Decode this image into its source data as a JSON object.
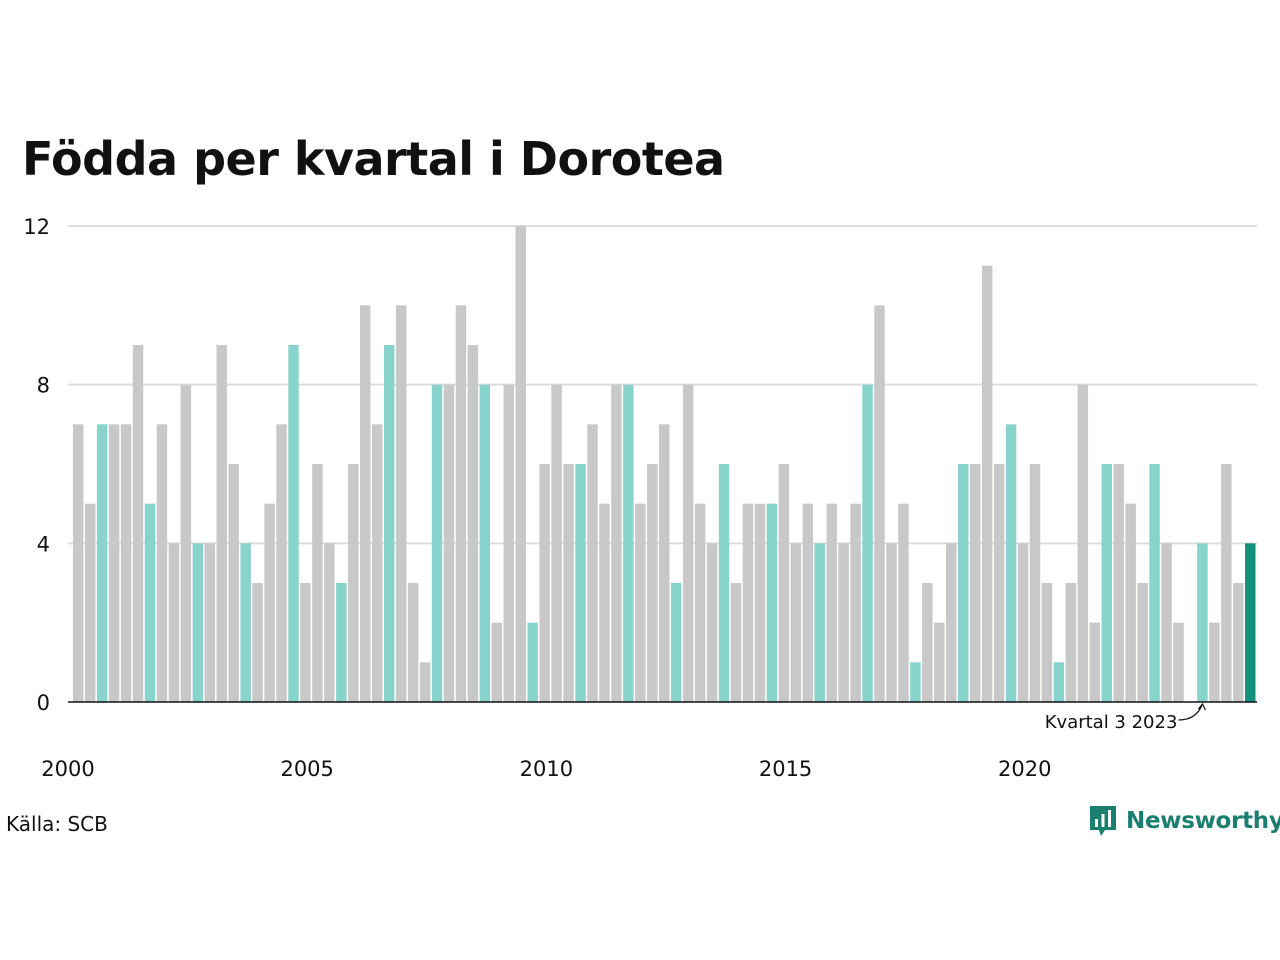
{
  "title": "Födda per kvartal i Dorotea",
  "source": "Källa: SCB",
  "brand": "Newsworthy",
  "colors": {
    "grey": "#c8c8c8",
    "q3": "#88d4cc",
    "latest": "#138f7e",
    "grid": "#dddddd",
    "brand": "#1a7f6e"
  },
  "annotation": "Kvartal 3 2023",
  "chart_data": {
    "type": "bar",
    "title": "Födda per kvartal i Dorotea",
    "ylim": [
      0,
      12
    ],
    "yticks": [
      0,
      4,
      8,
      12
    ],
    "xticks": [
      "2000",
      "2005",
      "2010",
      "2015",
      "2020"
    ],
    "grid": true,
    "x_start": "2000 Q1",
    "x_end": "2024 Q3",
    "highlight": "Kvartal 3",
    "annotated_point": "2023 Q3",
    "values": [
      7,
      5,
      7,
      7,
      7,
      9,
      5,
      7,
      4,
      8,
      4,
      4,
      9,
      6,
      4,
      3,
      5,
      7,
      9,
      3,
      6,
      4,
      3,
      6,
      10,
      7,
      9,
      10,
      3,
      1,
      8,
      8,
      10,
      9,
      8,
      2,
      8,
      12,
      2,
      6,
      8,
      6,
      6,
      7,
      5,
      8,
      8,
      5,
      6,
      7,
      3,
      8,
      5,
      4,
      6,
      3,
      5,
      5,
      5,
      6,
      4,
      5,
      4,
      5,
      4,
      5,
      8,
      10,
      4,
      5,
      1,
      3,
      2,
      4,
      6,
      6,
      11,
      6,
      7,
      4,
      6,
      3,
      1,
      3,
      8,
      2,
      6,
      6,
      5,
      3,
      6,
      4,
      2,
      0,
      4,
      2,
      6,
      3,
      4
    ]
  }
}
